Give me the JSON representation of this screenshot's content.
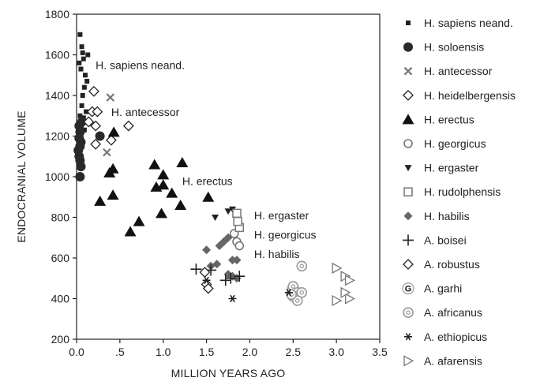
{
  "chart_data": {
    "type": "scatter",
    "xlabel": "MILLION YEARS AGO",
    "ylabel": "ENDOCRANIAL VOLUME",
    "xlim": [
      0,
      3.5
    ],
    "ylim": [
      200,
      1800
    ],
    "x_ticks": [
      {
        "value": 0,
        "label": "0.0"
      },
      {
        "value": 0.5,
        "label": ".5"
      },
      {
        "value": 1.0,
        "label": "1.0"
      },
      {
        "value": 1.5,
        "label": "1.5"
      },
      {
        "value": 2.0,
        "label": "2.0"
      },
      {
        "value": 2.5,
        "label": "2.5"
      },
      {
        "value": 3.0,
        "label": "3.0"
      },
      {
        "value": 3.5,
        "label": "3.5"
      }
    ],
    "y_ticks": [
      {
        "value": 200,
        "label": "200"
      },
      {
        "value": 400,
        "label": "400"
      },
      {
        "value": 600,
        "label": "600"
      },
      {
        "value": 800,
        "label": "800"
      },
      {
        "value": 1000,
        "label": "1000"
      },
      {
        "value": 1200,
        "label": "1200"
      },
      {
        "value": 1400,
        "label": "1400"
      },
      {
        "value": 1600,
        "label": "1600"
      },
      {
        "value": 1800,
        "label": "1800"
      }
    ],
    "grid": false,
    "legend_position": "right",
    "annotations": [
      {
        "text": "H. sapiens neand.",
        "x": 0.22,
        "y": 1530
      },
      {
        "text": "H. antecessor",
        "x": 0.4,
        "y": 1300
      },
      {
        "text": "H. erectus",
        "x": 1.22,
        "y": 960
      },
      {
        "text": "H. ergaster",
        "x": 2.05,
        "y": 790
      },
      {
        "text": "H. georgicus",
        "x": 2.05,
        "y": 695
      },
      {
        "text": "H. habilis",
        "x": 2.05,
        "y": 600
      }
    ],
    "series": [
      {
        "name": "H. sapiens neand.",
        "marker": "small-square",
        "color": "#222222",
        "points": [
          [
            0.04,
            1700
          ],
          [
            0.06,
            1640
          ],
          [
            0.07,
            1610
          ],
          [
            0.08,
            1580
          ],
          [
            0.03,
            1560
          ],
          [
            0.05,
            1530
          ],
          [
            0.1,
            1500
          ],
          [
            0.12,
            1470
          ],
          [
            0.09,
            1440
          ],
          [
            0.06,
            1350
          ],
          [
            0.11,
            1320
          ],
          [
            0.04,
            1300
          ],
          [
            0.08,
            1290
          ],
          [
            0.12,
            1270
          ],
          [
            0.05,
            1250
          ],
          [
            0.09,
            1230
          ],
          [
            0.03,
            1210
          ],
          [
            0.13,
            1600
          ],
          [
            0.07,
            1400
          ]
        ]
      },
      {
        "name": "H. soloensis",
        "marker": "circle",
        "color": "#2a2a2a",
        "points": [
          [
            0.03,
            1250
          ],
          [
            0.04,
            1220
          ],
          [
            0.03,
            1190
          ],
          [
            0.05,
            1170
          ],
          [
            0.04,
            1150
          ],
          [
            0.03,
            1100
          ],
          [
            0.04,
            1080
          ],
          [
            0.05,
            1050
          ],
          [
            0.04,
            1000
          ],
          [
            0.06,
            1270
          ],
          [
            0.27,
            1200
          ],
          [
            0.02,
            1130
          ]
        ]
      },
      {
        "name": "H. antecessor",
        "marker": "x",
        "color": "#777777",
        "points": [
          [
            0.39,
            1390
          ],
          [
            0.35,
            1120
          ]
        ]
      },
      {
        "name": "H. heidelbergensis",
        "marker": "diamond-open",
        "color": "#222222",
        "points": [
          [
            0.2,
            1420
          ],
          [
            0.18,
            1320
          ],
          [
            0.24,
            1320
          ],
          [
            0.14,
            1270
          ],
          [
            0.22,
            1250
          ],
          [
            0.6,
            1250
          ],
          [
            0.4,
            1180
          ],
          [
            0.22,
            1160
          ]
        ]
      },
      {
        "name": "H. erectus",
        "marker": "triangle-filled",
        "color": "#111111",
        "points": [
          [
            0.43,
            1220
          ],
          [
            0.42,
            1040
          ],
          [
            0.38,
            1020
          ],
          [
            0.27,
            880
          ],
          [
            0.42,
            910
          ],
          [
            0.62,
            730
          ],
          [
            0.72,
            780
          ],
          [
            0.9,
            1060
          ],
          [
            0.92,
            950
          ],
          [
            1.0,
            1010
          ],
          [
            1.0,
            960
          ],
          [
            1.1,
            920
          ],
          [
            1.2,
            860
          ],
          [
            1.22,
            1070
          ],
          [
            0.98,
            820
          ],
          [
            1.52,
            900
          ]
        ]
      },
      {
        "name": "H. georgicus",
        "marker": "circle-open",
        "color": "#777777",
        "points": [
          [
            1.82,
            720
          ],
          [
            1.85,
            680
          ],
          [
            1.88,
            660
          ]
        ]
      },
      {
        "name": "H. ergaster",
        "marker": "triangle-down",
        "color": "#222222",
        "points": [
          [
            1.6,
            800
          ],
          [
            1.75,
            830
          ],
          [
            1.8,
            840
          ]
        ]
      },
      {
        "name": "H. rudolphensis",
        "marker": "square-open",
        "color": "#777777",
        "points": [
          [
            1.85,
            820
          ],
          [
            1.88,
            750
          ],
          [
            1.86,
            780
          ]
        ]
      },
      {
        "name": "H. habilis",
        "marker": "diamond-filled",
        "color": "#666666",
        "points": [
          [
            1.5,
            640
          ],
          [
            1.65,
            660
          ],
          [
            1.7,
            680
          ],
          [
            1.75,
            700
          ],
          [
            1.8,
            590
          ],
          [
            1.85,
            590
          ],
          [
            1.62,
            570
          ],
          [
            1.75,
            520
          ],
          [
            1.85,
            500
          ],
          [
            1.8,
            510
          ],
          [
            1.55,
            560
          ]
        ]
      },
      {
        "name": "A. boisei",
        "marker": "plus",
        "color": "#222222",
        "points": [
          [
            1.38,
            545
          ],
          [
            1.72,
            490
          ],
          [
            1.78,
            500
          ],
          [
            1.88,
            510
          ],
          [
            1.55,
            540
          ]
        ]
      },
      {
        "name": "A. robustus",
        "marker": "diamond-open",
        "color": "#222222",
        "points": [
          [
            1.48,
            530
          ],
          [
            1.5,
            470
          ],
          [
            1.52,
            450
          ]
        ]
      },
      {
        "name": "A. garhi",
        "marker": "letter-G",
        "color": "#111111",
        "points": [
          [
            2.5,
            450
          ]
        ]
      },
      {
        "name": "A. africanus",
        "marker": "circle-dot",
        "color": "#999999",
        "points": [
          [
            2.5,
            460
          ],
          [
            2.55,
            430
          ],
          [
            2.6,
            560
          ],
          [
            2.5,
            410
          ],
          [
            2.6,
            430
          ],
          [
            2.55,
            390
          ],
          [
            2.48,
            420
          ]
        ]
      },
      {
        "name": "A. ethiopicus",
        "marker": "asterisk",
        "color": "#222222",
        "points": [
          [
            2.45,
            430
          ],
          [
            1.5,
            490
          ],
          [
            1.8,
            400
          ]
        ]
      },
      {
        "name": "A. afarensis",
        "marker": "triangle-right",
        "color": "#777777",
        "points": [
          [
            3.0,
            550
          ],
          [
            3.0,
            390
          ],
          [
            3.1,
            510
          ],
          [
            3.15,
            490
          ],
          [
            3.15,
            400
          ],
          [
            3.1,
            430
          ]
        ]
      }
    ]
  }
}
